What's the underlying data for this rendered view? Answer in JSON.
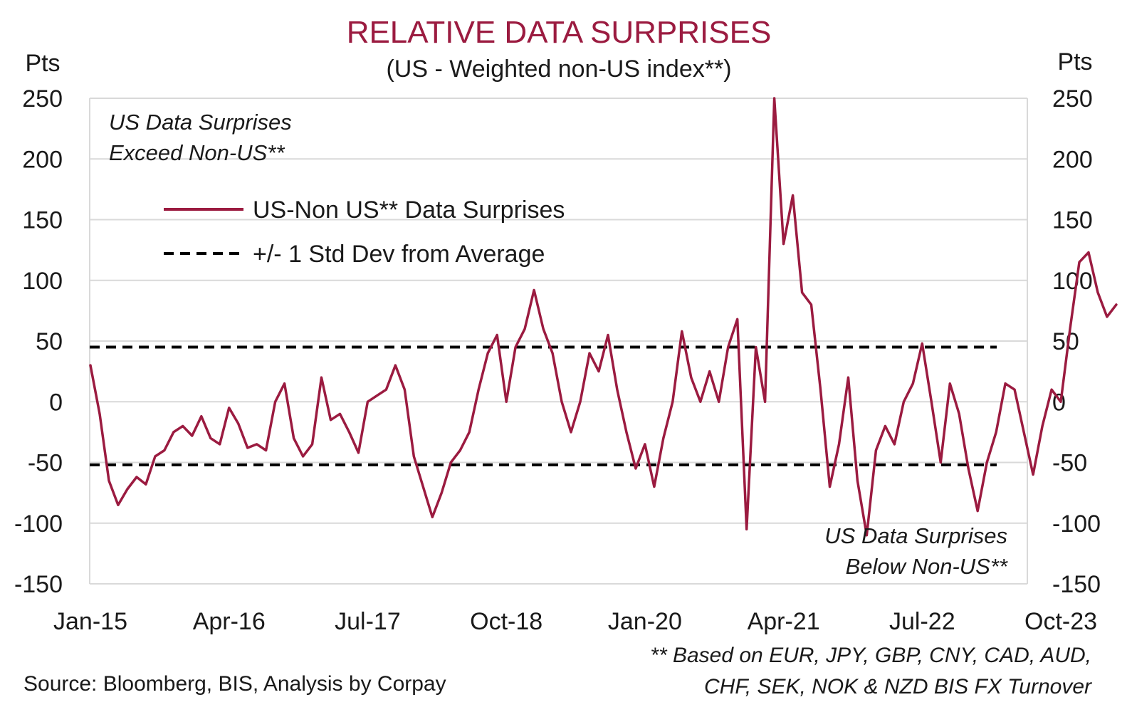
{
  "chart_data": {
    "type": "line",
    "title": "RELATIVE DATA SURPRISES",
    "subtitle": "(US - Weighted non-US index**)",
    "ylabel_left": "Pts",
    "ylabel_right": "Pts",
    "ylim": [
      -150,
      250
    ],
    "yticks": [
      "250",
      "200",
      "150",
      "100",
      "50",
      "0",
      "-50",
      "-100",
      "-150"
    ],
    "xlim": [
      "2015-01",
      "2023-12"
    ],
    "xticks": [
      {
        "label": "Jan-15",
        "date": "2015-01"
      },
      {
        "label": "Apr-16",
        "date": "2016-04"
      },
      {
        "label": "Jul-17",
        "date": "2017-07"
      },
      {
        "label": "Oct-18",
        "date": "2018-10"
      },
      {
        "label": "Jan-20",
        "date": "2020-01"
      },
      {
        "label": "Apr-21",
        "date": "2021-04"
      },
      {
        "label": "Jul-22",
        "date": "2022-07"
      },
      {
        "label": "Oct-23",
        "date": "2023-10"
      }
    ],
    "grid": true,
    "legend_placement": "upper-left",
    "annotations": {
      "top_left": [
        "US Data Surprises",
        "Exceed Non-US**"
      ],
      "bottom_right": [
        "US Data Surprises",
        "Below Non-US**"
      ]
    },
    "series": [
      {
        "name": "US-Non US** Data Surprises",
        "color": "#9b1b40",
        "style": "solid",
        "points": [
          [
            "2015-01",
            30
          ],
          [
            "2015-02",
            -10
          ],
          [
            "2015-03",
            -65
          ],
          [
            "2015-04",
            -85
          ],
          [
            "2015-05",
            -72
          ],
          [
            "2015-06",
            -62
          ],
          [
            "2015-07",
            -68
          ],
          [
            "2015-08",
            -45
          ],
          [
            "2015-09",
            -40
          ],
          [
            "2015-10",
            -25
          ],
          [
            "2015-11",
            -20
          ],
          [
            "2015-12",
            -28
          ],
          [
            "2016-01",
            -12
          ],
          [
            "2016-02",
            -30
          ],
          [
            "2016-03",
            -35
          ],
          [
            "2016-04",
            -5
          ],
          [
            "2016-05",
            -18
          ],
          [
            "2016-06",
            -38
          ],
          [
            "2016-07",
            -35
          ],
          [
            "2016-08",
            -40
          ],
          [
            "2016-09",
            0
          ],
          [
            "2016-10",
            15
          ],
          [
            "2016-11",
            -30
          ],
          [
            "2016-12",
            -45
          ],
          [
            "2017-01",
            -35
          ],
          [
            "2017-02",
            20
          ],
          [
            "2017-03",
            -15
          ],
          [
            "2017-04",
            -10
          ],
          [
            "2017-05",
            -25
          ],
          [
            "2017-06",
            -42
          ],
          [
            "2017-07",
            0
          ],
          [
            "2017-08",
            5
          ],
          [
            "2017-09",
            10
          ],
          [
            "2017-10",
            30
          ],
          [
            "2017-11",
            10
          ],
          [
            "2017-12",
            -45
          ],
          [
            "2018-01",
            -70
          ],
          [
            "2018-02",
            -95
          ],
          [
            "2018-03",
            -75
          ],
          [
            "2018-04",
            -50
          ],
          [
            "2018-05",
            -40
          ],
          [
            "2018-06",
            -25
          ],
          [
            "2018-07",
            10
          ],
          [
            "2018-08",
            40
          ],
          [
            "2018-09",
            55
          ],
          [
            "2018-10",
            0
          ],
          [
            "2018-11",
            45
          ],
          [
            "2018-12",
            60
          ],
          [
            "2019-01",
            92
          ],
          [
            "2019-02",
            60
          ],
          [
            "2019-03",
            40
          ],
          [
            "2019-04",
            0
          ],
          [
            "2019-05",
            -25
          ],
          [
            "2019-06",
            0
          ],
          [
            "2019-07",
            40
          ],
          [
            "2019-08",
            25
          ],
          [
            "2019-09",
            55
          ],
          [
            "2019-10",
            10
          ],
          [
            "2019-11",
            -25
          ],
          [
            "2019-12",
            -55
          ],
          [
            "2020-01",
            -35
          ],
          [
            "2020-02",
            -70
          ],
          [
            "2020-03",
            -30
          ],
          [
            "2020-04",
            0
          ],
          [
            "2020-05",
            58
          ],
          [
            "2020-06",
            20
          ],
          [
            "2020-07",
            0
          ],
          [
            "2020-08",
            25
          ],
          [
            "2020-09",
            0
          ],
          [
            "2020-10",
            45
          ],
          [
            "2020-11",
            68
          ],
          [
            "2020-12",
            -105
          ],
          [
            "2021-01",
            45
          ],
          [
            "2021-02",
            0
          ],
          [
            "2021-03",
            250
          ],
          [
            "2021-04",
            130
          ],
          [
            "2021-05",
            170
          ],
          [
            "2021-06",
            90
          ],
          [
            "2021-07",
            80
          ],
          [
            "2021-08",
            10
          ],
          [
            "2021-09",
            -70
          ],
          [
            "2021-10",
            -35
          ],
          [
            "2021-11",
            20
          ],
          [
            "2021-12",
            -65
          ],
          [
            "2022-01",
            -110
          ],
          [
            "2022-02",
            -40
          ],
          [
            "2022-03",
            -20
          ],
          [
            "2022-04",
            -35
          ],
          [
            "2022-05",
            0
          ],
          [
            "2022-06",
            15
          ],
          [
            "2022-07",
            48
          ],
          [
            "2022-08",
            0
          ],
          [
            "2022-09",
            -50
          ],
          [
            "2022-10",
            15
          ],
          [
            "2022-11",
            -10
          ],
          [
            "2022-12",
            -55
          ],
          [
            "2023-01",
            -90
          ],
          [
            "2023-02",
            -50
          ],
          [
            "2023-03",
            -25
          ],
          [
            "2023-04",
            15
          ],
          [
            "2023-05",
            10
          ],
          [
            "2023-06",
            -25
          ],
          [
            "2023-07",
            -60
          ],
          [
            "2023-08",
            -20
          ],
          [
            "2023-09",
            10
          ],
          [
            "2023-10",
            0
          ],
          [
            "2023-11",
            60
          ],
          [
            "2023-12",
            115
          ],
          [
            "2024-01",
            123
          ],
          [
            "2024-02",
            90
          ],
          [
            "2024-03",
            70
          ],
          [
            "2024-04",
            80
          ]
        ]
      },
      {
        "name": "+/- 1 Std Dev from Average",
        "color": "#000000",
        "style": "dashed",
        "values": [
          45,
          -52
        ]
      }
    ]
  },
  "source": "Source: Bloomberg, BIS, Analysis by Corpay",
  "footnote": [
    "** Based on EUR, JPY, GBP, CNY, CAD, AUD,",
    "CHF, SEK, NOK & NZD BIS FX Turnover"
  ]
}
